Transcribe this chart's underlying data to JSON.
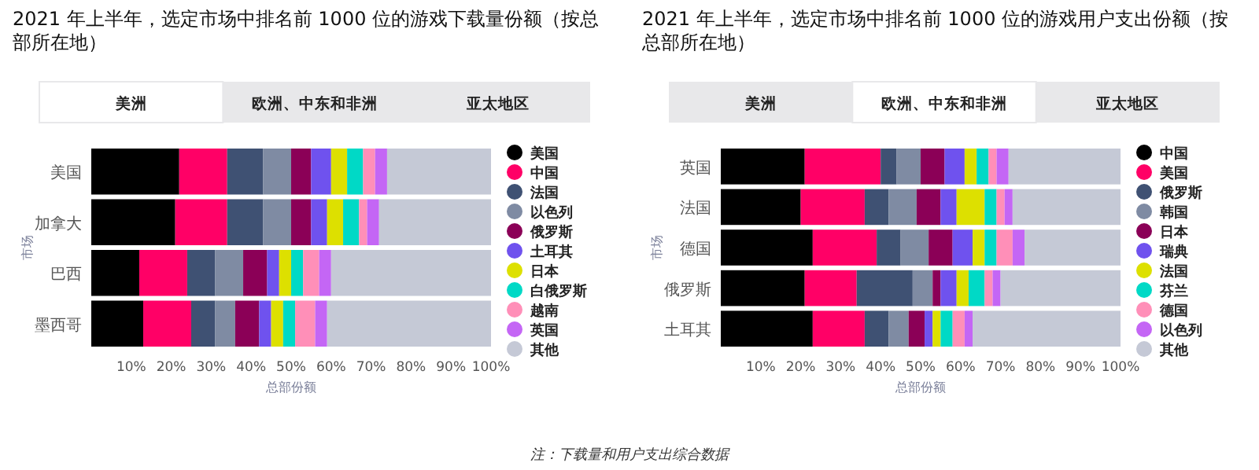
{
  "chart_data": [
    {
      "type": "bar",
      "orientation": "horizontal",
      "stacked": true,
      "title": "2021 年上半年，选定市场中排名前 1000 位的游戏下载量份额（按总部所在地）",
      "xlabel": "总部份额",
      "ylabel": "市场",
      "annotations": [
        "美洲",
        "欧洲、中东和非洲",
        "亚太地区"
      ],
      "categories": [
        "美国",
        "加拿大",
        "巴西",
        "墨西哥"
      ],
      "xlim": [
        0,
        100
      ],
      "xticks": [
        {
          "value": 10,
          "label": "10%"
        },
        {
          "value": 20,
          "label": "20%"
        },
        {
          "value": 30,
          "label": "30%"
        },
        {
          "value": 40,
          "label": "40%"
        },
        {
          "value": 50,
          "label": "50%"
        },
        {
          "value": 60,
          "label": "60%"
        },
        {
          "value": 70,
          "label": "70%"
        },
        {
          "value": 80,
          "label": "80%"
        },
        {
          "value": 90,
          "label": "90%"
        },
        {
          "value": 100,
          "label": "100%"
        }
      ],
      "legend": "right",
      "grid": false,
      "series": [
        {
          "name": "美国",
          "color": "#000000",
          "values": [
            22,
            21,
            12,
            13
          ]
        },
        {
          "name": "中国",
          "color": "#ff0066",
          "values": [
            12,
            13,
            12,
            12
          ]
        },
        {
          "name": "法国",
          "color": "#3f5173",
          "values": [
            9,
            9,
            7,
            6
          ]
        },
        {
          "name": "以色列",
          "color": "#7f8ba3",
          "values": [
            7,
            7,
            7,
            5
          ]
        },
        {
          "name": "俄罗斯",
          "color": "#8b0057",
          "values": [
            5,
            5,
            6,
            6
          ]
        },
        {
          "name": "土耳其",
          "color": "#6f52ee",
          "values": [
            5,
            4,
            3,
            3
          ]
        },
        {
          "name": "日本",
          "color": "#dde000",
          "values": [
            4,
            4,
            3,
            3
          ]
        },
        {
          "name": "白俄罗斯",
          "color": "#00d9c6",
          "values": [
            4,
            4,
            3,
            3
          ]
        },
        {
          "name": "越南",
          "color": "#ff8fb8",
          "values": [
            3,
            2,
            4,
            5
          ]
        },
        {
          "name": "英国",
          "color": "#c466f5",
          "values": [
            3,
            3,
            3,
            3
          ]
        },
        {
          "name": "其他",
          "color": "#c5c9d6",
          "values": [
            26,
            28,
            40,
            41
          ]
        }
      ]
    },
    {
      "type": "bar",
      "orientation": "horizontal",
      "stacked": true,
      "title": "2021 年上半年，选定市场中排名前 1000 位的游戏用户支出份额（按总部所在地）",
      "xlabel": "总部份额",
      "ylabel": "市场",
      "annotations": [
        "美洲",
        "欧洲、中东和非洲",
        "亚太地区",
        "注：下载量和用户支出综合数据"
      ],
      "categories": [
        "英国",
        "法国",
        "德国",
        "俄罗斯",
        "土耳其"
      ],
      "xlim": [
        0,
        100
      ],
      "xticks": [
        {
          "value": 10,
          "label": "10%"
        },
        {
          "value": 20,
          "label": "20%"
        },
        {
          "value": 30,
          "label": "30%"
        },
        {
          "value": 40,
          "label": "40%"
        },
        {
          "value": 50,
          "label": "50%"
        },
        {
          "value": 60,
          "label": "60%"
        },
        {
          "value": 70,
          "label": "70%"
        },
        {
          "value": 80,
          "label": "80%"
        },
        {
          "value": 90,
          "label": "90%"
        },
        {
          "value": 100,
          "label": "100%"
        }
      ],
      "legend": "right",
      "grid": false,
      "series": [
        {
          "name": "中国",
          "color": "#000000",
          "values": [
            21,
            20,
            23,
            21,
            23
          ]
        },
        {
          "name": "美国",
          "color": "#ff0066",
          "values": [
            19,
            16,
            16,
            13,
            13
          ]
        },
        {
          "name": "俄罗斯",
          "color": "#3f5173",
          "values": [
            4,
            6,
            6,
            14,
            6
          ]
        },
        {
          "name": "韩国",
          "color": "#7f8ba3",
          "values": [
            6,
            7,
            7,
            5,
            5
          ]
        },
        {
          "name": "日本",
          "color": "#8b0057",
          "values": [
            6,
            6,
            6,
            2,
            4
          ]
        },
        {
          "name": "瑞典",
          "color": "#6f52ee",
          "values": [
            5,
            4,
            5,
            4,
            2
          ]
        },
        {
          "name": "法国",
          "color": "#dde000",
          "values": [
            3,
            7,
            3,
            3,
            2
          ]
        },
        {
          "name": "芬兰",
          "color": "#00d9c6",
          "values": [
            3,
            3,
            3,
            4,
            3
          ]
        },
        {
          "name": "德国",
          "color": "#ff8fb8",
          "values": [
            2,
            2,
            4,
            2,
            3
          ]
        },
        {
          "name": "以色列",
          "color": "#c466f5",
          "values": [
            3,
            2,
            3,
            2,
            2
          ]
        },
        {
          "name": "其他",
          "color": "#c5c9d6",
          "values": [
            28,
            27,
            24,
            30,
            37
          ]
        }
      ]
    }
  ]
}
